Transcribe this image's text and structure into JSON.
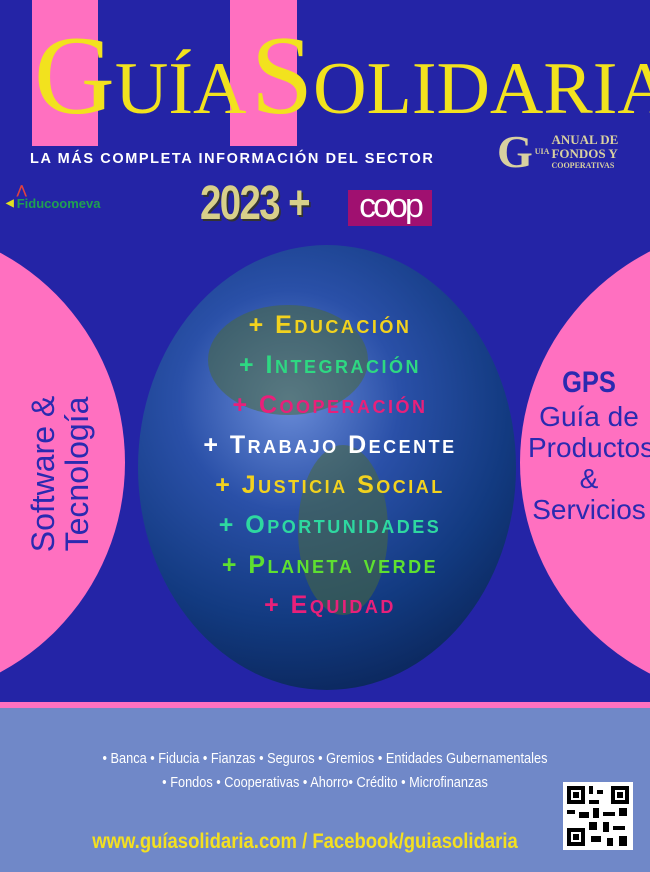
{
  "header": {
    "title_g": "G",
    "title_uia": "UÍA",
    "title_s": "S",
    "title_olidaria": "OLIDARIA",
    "subtitle": "LA MÁS COMPLETA INFORMACIÓN DEL SECTOR",
    "anual_logo": {
      "g": "G",
      "uia": "UIA",
      "line1": "ANUAL DE",
      "line2": "FONDOS Y",
      "line3": "COOPERATIVAS"
    },
    "sponsor": "Fiducoomeva",
    "year": "2023 +",
    "coop": "coop"
  },
  "items": [
    {
      "text": "+ Educación",
      "color": "#f2d21e"
    },
    {
      "text": "+ Integración",
      "color": "#2ed882"
    },
    {
      "text": "+ Cooperación",
      "color": "#e8207a"
    },
    {
      "text": "+ Trabajo Decente",
      "color": "#ffffff"
    },
    {
      "text": "+ Justicia Social",
      "color": "#f2d21e"
    },
    {
      "text": "+ Oportunidades",
      "color": "#2ed8a0"
    },
    {
      "text": "+ Planeta verde",
      "color": "#5ee030"
    },
    {
      "text": "+ Equidad",
      "color": "#e8207a"
    }
  ],
  "left_panel": {
    "line1": "Software &",
    "line2": "Tecnología"
  },
  "right_panel": {
    "gps": "GPS",
    "line1": "Guía de",
    "line2": "Productos",
    "line3": "&",
    "line4": "Servicios"
  },
  "footer": {
    "categories_1": "• Banca • Fiducia • Fianzas • Seguros • Gremios • Entidades Gubernamentales",
    "categories_2": "• Fondos • Cooperativas • Ahorro• Crédito • Microfinanzas",
    "url": "www.guíasolidaria.com / Facebook/guiasolidaria"
  }
}
